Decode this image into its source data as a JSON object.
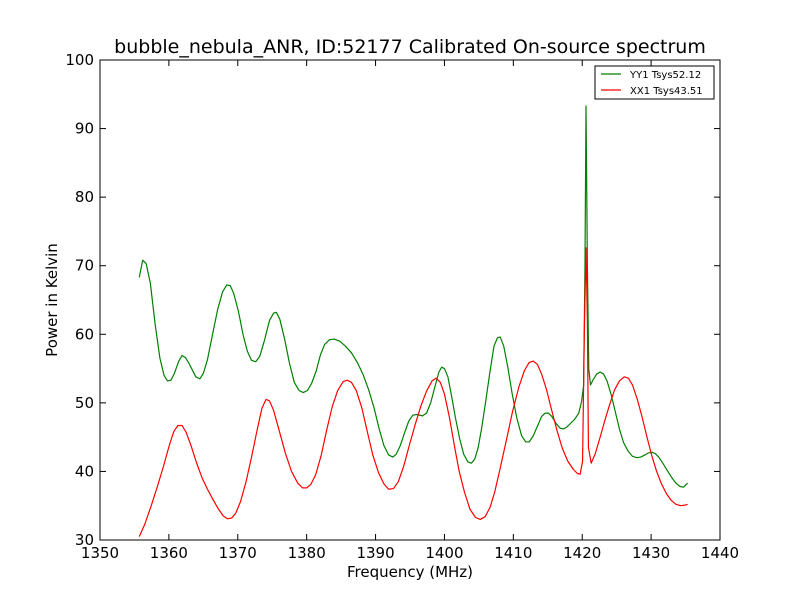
{
  "chart_data": {
    "type": "line",
    "title": "bubble_nebula_ANR, ID:52177 Calibrated On-source spectrum",
    "xlabel": "Frequency (MHz)",
    "ylabel": "Power in Kelvin",
    "xlim": [
      1350,
      1440
    ],
    "ylim": [
      30,
      100
    ],
    "xticks": [
      1350,
      1360,
      1370,
      1380,
      1390,
      1400,
      1410,
      1420,
      1430,
      1440
    ],
    "yticks": [
      30,
      40,
      50,
      60,
      70,
      80,
      90,
      100
    ],
    "grid": false,
    "legend_position": "top-right",
    "series": [
      {
        "name": "YY1 Tsys52.12",
        "color": "#008000",
        "points": [
          [
            1355.7,
            68.3
          ],
          [
            1356.2,
            70.8
          ],
          [
            1356.7,
            70.3
          ],
          [
            1357.3,
            67.5
          ],
          [
            1358.0,
            61.5
          ],
          [
            1358.7,
            56.5
          ],
          [
            1359.3,
            54.0
          ],
          [
            1359.8,
            53.2
          ],
          [
            1360.3,
            53.3
          ],
          [
            1360.8,
            54.3
          ],
          [
            1361.4,
            56.0
          ],
          [
            1361.9,
            56.9
          ],
          [
            1362.4,
            56.6
          ],
          [
            1362.9,
            55.8
          ],
          [
            1363.4,
            54.8
          ],
          [
            1363.9,
            53.8
          ],
          [
            1364.5,
            53.5
          ],
          [
            1365.0,
            54.3
          ],
          [
            1365.6,
            56.3
          ],
          [
            1366.3,
            59.8
          ],
          [
            1367.1,
            63.7
          ],
          [
            1367.8,
            66.2
          ],
          [
            1368.4,
            67.2
          ],
          [
            1368.9,
            67.1
          ],
          [
            1369.4,
            66.0
          ],
          [
            1370.1,
            63.3
          ],
          [
            1370.8,
            59.8
          ],
          [
            1371.4,
            57.5
          ],
          [
            1372.0,
            56.2
          ],
          [
            1372.6,
            56.0
          ],
          [
            1373.2,
            56.8
          ],
          [
            1373.9,
            59.2
          ],
          [
            1374.6,
            62.0
          ],
          [
            1375.2,
            63.1
          ],
          [
            1375.6,
            63.2
          ],
          [
            1376.1,
            62.2
          ],
          [
            1376.8,
            59.3
          ],
          [
            1377.5,
            55.8
          ],
          [
            1378.2,
            53.0
          ],
          [
            1378.9,
            51.8
          ],
          [
            1379.5,
            51.5
          ],
          [
            1380.1,
            51.8
          ],
          [
            1380.7,
            52.8
          ],
          [
            1381.4,
            54.7
          ],
          [
            1382.0,
            57.0
          ],
          [
            1382.6,
            58.5
          ],
          [
            1383.3,
            59.2
          ],
          [
            1384.0,
            59.3
          ],
          [
            1384.8,
            59.0
          ],
          [
            1385.6,
            58.3
          ],
          [
            1386.5,
            57.3
          ],
          [
            1387.4,
            55.8
          ],
          [
            1388.2,
            54.1
          ],
          [
            1389.0,
            51.9
          ],
          [
            1389.8,
            49.2
          ],
          [
            1390.5,
            46.3
          ],
          [
            1391.2,
            43.8
          ],
          [
            1391.9,
            42.4
          ],
          [
            1392.5,
            42.1
          ],
          [
            1393.0,
            42.5
          ],
          [
            1393.6,
            43.8
          ],
          [
            1394.2,
            45.6
          ],
          [
            1394.8,
            47.3
          ],
          [
            1395.4,
            48.2
          ],
          [
            1396.0,
            48.3
          ],
          [
            1396.8,
            48.1
          ],
          [
            1397.4,
            48.5
          ],
          [
            1398.0,
            50.0
          ],
          [
            1398.6,
            52.3
          ],
          [
            1399.2,
            54.5
          ],
          [
            1399.6,
            55.2
          ],
          [
            1400.0,
            55.0
          ],
          [
            1400.5,
            53.8
          ],
          [
            1401.0,
            51.2
          ],
          [
            1401.6,
            47.8
          ],
          [
            1402.2,
            44.8
          ],
          [
            1402.8,
            42.5
          ],
          [
            1403.4,
            41.4
          ],
          [
            1403.9,
            41.2
          ],
          [
            1404.4,
            41.8
          ],
          [
            1404.9,
            43.5
          ],
          [
            1405.4,
            46.3
          ],
          [
            1406.0,
            50.3
          ],
          [
            1406.6,
            54.5
          ],
          [
            1407.2,
            58.3
          ],
          [
            1407.7,
            59.5
          ],
          [
            1408.1,
            59.6
          ],
          [
            1408.6,
            58.3
          ],
          [
            1409.2,
            55.2
          ],
          [
            1409.8,
            51.5
          ],
          [
            1410.5,
            47.8
          ],
          [
            1411.2,
            45.2
          ],
          [
            1411.8,
            44.3
          ],
          [
            1412.3,
            44.3
          ],
          [
            1412.9,
            45.2
          ],
          [
            1413.5,
            46.6
          ],
          [
            1414.1,
            48.0
          ],
          [
            1414.6,
            48.5
          ],
          [
            1415.1,
            48.5
          ],
          [
            1415.6,
            48.0
          ],
          [
            1416.2,
            47.0
          ],
          [
            1416.8,
            46.3
          ],
          [
            1417.3,
            46.2
          ],
          [
            1417.8,
            46.5
          ],
          [
            1418.4,
            47.1
          ],
          [
            1418.9,
            47.6
          ],
          [
            1419.5,
            48.5
          ],
          [
            1419.9,
            50.2
          ],
          [
            1420.2,
            52.5
          ],
          [
            1420.4,
            70.0
          ],
          [
            1420.55,
            93.3
          ],
          [
            1420.75,
            70.0
          ],
          [
            1420.95,
            55.0
          ],
          [
            1421.2,
            52.6
          ],
          [
            1421.6,
            53.4
          ],
          [
            1422.1,
            54.2
          ],
          [
            1422.6,
            54.5
          ],
          [
            1423.1,
            54.2
          ],
          [
            1423.6,
            53.2
          ],
          [
            1424.2,
            51.2
          ],
          [
            1424.8,
            48.7
          ],
          [
            1425.4,
            46.2
          ],
          [
            1426.0,
            44.2
          ],
          [
            1426.7,
            42.9
          ],
          [
            1427.3,
            42.2
          ],
          [
            1427.9,
            42.0
          ],
          [
            1428.5,
            42.1
          ],
          [
            1429.1,
            42.4
          ],
          [
            1429.6,
            42.7
          ],
          [
            1430.1,
            42.8
          ],
          [
            1430.6,
            42.6
          ],
          [
            1431.1,
            42.1
          ],
          [
            1431.7,
            41.2
          ],
          [
            1432.3,
            40.2
          ],
          [
            1433.0,
            39.1
          ],
          [
            1433.6,
            38.3
          ],
          [
            1434.2,
            37.8
          ],
          [
            1434.7,
            37.7
          ],
          [
            1435.3,
            38.3
          ]
        ]
      },
      {
        "name": "XX1 Tsys43.51",
        "color": "#ff0000",
        "points": [
          [
            1355.7,
            30.5
          ],
          [
            1356.5,
            32.3
          ],
          [
            1357.4,
            34.9
          ],
          [
            1358.3,
            37.7
          ],
          [
            1359.2,
            40.7
          ],
          [
            1360.0,
            43.6
          ],
          [
            1360.7,
            45.8
          ],
          [
            1361.3,
            46.7
          ],
          [
            1361.9,
            46.7
          ],
          [
            1362.5,
            45.7
          ],
          [
            1363.2,
            43.8
          ],
          [
            1364.0,
            41.3
          ],
          [
            1364.8,
            39.1
          ],
          [
            1365.6,
            37.4
          ],
          [
            1366.4,
            35.9
          ],
          [
            1367.2,
            34.5
          ],
          [
            1367.9,
            33.5
          ],
          [
            1368.5,
            33.1
          ],
          [
            1369.1,
            33.2
          ],
          [
            1369.7,
            33.9
          ],
          [
            1370.4,
            35.6
          ],
          [
            1371.2,
            38.5
          ],
          [
            1372.0,
            42.1
          ],
          [
            1372.8,
            46.0
          ],
          [
            1373.5,
            49.2
          ],
          [
            1374.1,
            50.5
          ],
          [
            1374.6,
            50.3
          ],
          [
            1375.2,
            48.9
          ],
          [
            1376.0,
            46.0
          ],
          [
            1376.9,
            42.7
          ],
          [
            1377.8,
            40.0
          ],
          [
            1378.7,
            38.3
          ],
          [
            1379.4,
            37.6
          ],
          [
            1380.0,
            37.6
          ],
          [
            1380.6,
            38.1
          ],
          [
            1381.3,
            39.5
          ],
          [
            1382.1,
            42.3
          ],
          [
            1382.9,
            46.0
          ],
          [
            1383.7,
            49.4
          ],
          [
            1384.5,
            51.8
          ],
          [
            1385.3,
            53.1
          ],
          [
            1385.9,
            53.3
          ],
          [
            1386.5,
            53.0
          ],
          [
            1387.2,
            51.8
          ],
          [
            1388.0,
            49.3
          ],
          [
            1388.8,
            45.8
          ],
          [
            1389.6,
            42.4
          ],
          [
            1390.4,
            39.9
          ],
          [
            1391.2,
            38.2
          ],
          [
            1391.9,
            37.4
          ],
          [
            1392.6,
            37.5
          ],
          [
            1393.3,
            38.5
          ],
          [
            1394.1,
            40.8
          ],
          [
            1394.9,
            43.8
          ],
          [
            1395.8,
            47.0
          ],
          [
            1396.6,
            49.6
          ],
          [
            1397.4,
            51.7
          ],
          [
            1398.2,
            53.2
          ],
          [
            1398.8,
            53.6
          ],
          [
            1399.4,
            53.0
          ],
          [
            1400.0,
            51.3
          ],
          [
            1400.7,
            48.0
          ],
          [
            1401.4,
            44.0
          ],
          [
            1402.1,
            40.2
          ],
          [
            1402.9,
            37.0
          ],
          [
            1403.7,
            34.5
          ],
          [
            1404.5,
            33.3
          ],
          [
            1405.2,
            33.0
          ],
          [
            1405.9,
            33.4
          ],
          [
            1406.6,
            34.7
          ],
          [
            1407.3,
            37.0
          ],
          [
            1408.1,
            40.5
          ],
          [
            1409.0,
            44.6
          ],
          [
            1409.9,
            48.8
          ],
          [
            1410.8,
            52.3
          ],
          [
            1411.6,
            54.7
          ],
          [
            1412.3,
            55.9
          ],
          [
            1412.9,
            56.1
          ],
          [
            1413.5,
            55.6
          ],
          [
            1414.1,
            54.2
          ],
          [
            1414.8,
            52.0
          ],
          [
            1415.5,
            49.2
          ],
          [
            1416.3,
            46.1
          ],
          [
            1417.1,
            43.4
          ],
          [
            1417.9,
            41.5
          ],
          [
            1418.7,
            40.3
          ],
          [
            1419.3,
            39.7
          ],
          [
            1419.7,
            39.6
          ],
          [
            1420.05,
            41.5
          ],
          [
            1420.3,
            60.0
          ],
          [
            1420.55,
            72.6
          ],
          [
            1420.75,
            62.0
          ],
          [
            1420.9,
            43.5
          ],
          [
            1421.3,
            41.2
          ],
          [
            1421.9,
            42.6
          ],
          [
            1422.6,
            45.0
          ],
          [
            1423.3,
            47.5
          ],
          [
            1424.0,
            49.8
          ],
          [
            1424.7,
            51.9
          ],
          [
            1425.4,
            53.2
          ],
          [
            1426.1,
            53.8
          ],
          [
            1426.7,
            53.6
          ],
          [
            1427.3,
            52.6
          ],
          [
            1428.0,
            50.5
          ],
          [
            1428.7,
            47.9
          ],
          [
            1429.4,
            45.0
          ],
          [
            1430.1,
            42.3
          ],
          [
            1430.8,
            40.0
          ],
          [
            1431.5,
            38.2
          ],
          [
            1432.2,
            36.8
          ],
          [
            1432.9,
            35.8
          ],
          [
            1433.6,
            35.2
          ],
          [
            1434.3,
            35.0
          ],
          [
            1435.0,
            35.1
          ],
          [
            1435.3,
            35.2
          ]
        ]
      }
    ]
  }
}
